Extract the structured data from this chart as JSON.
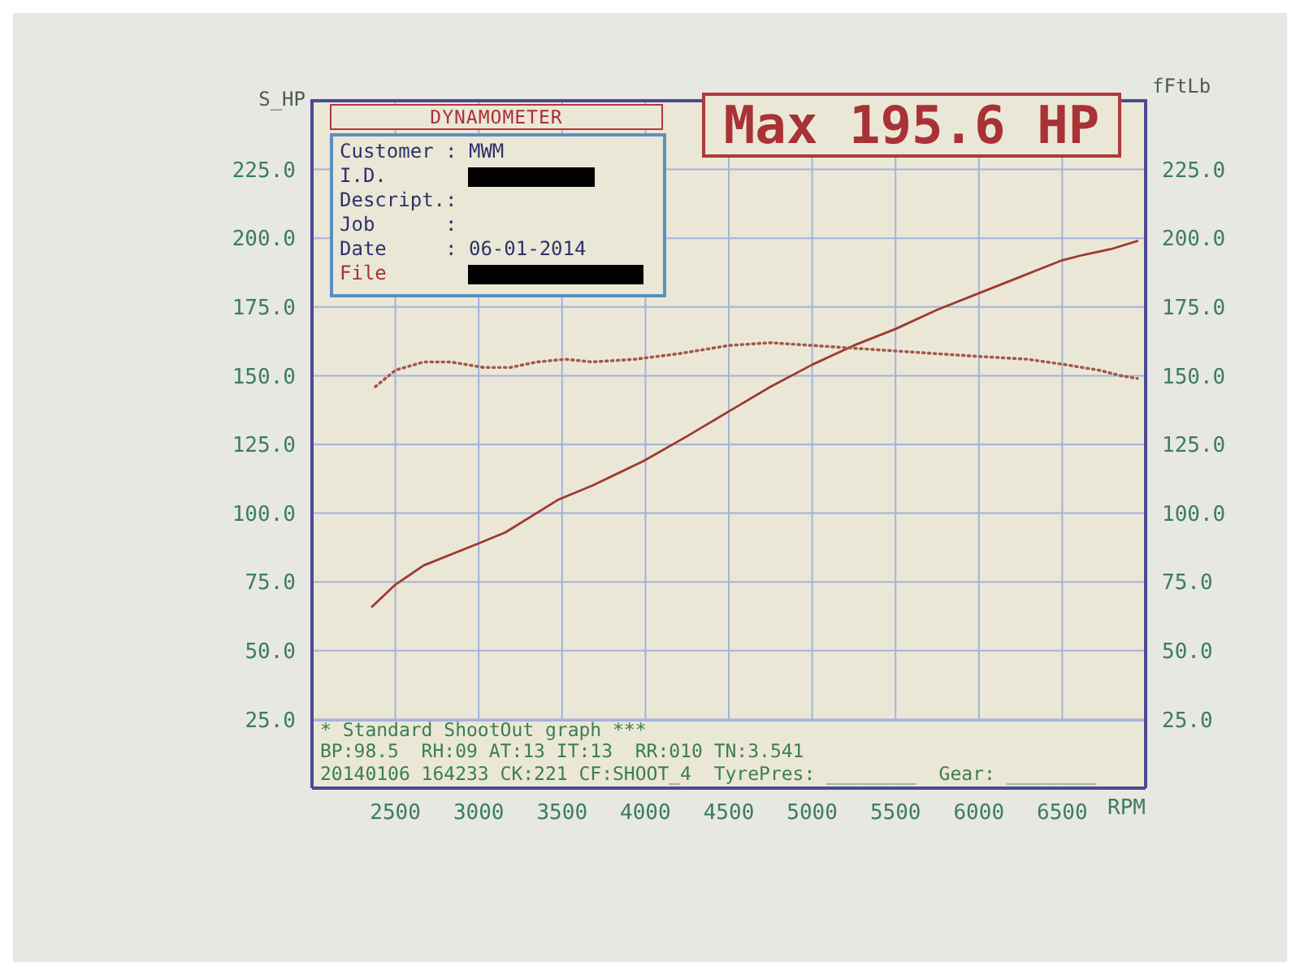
{
  "chart_data": {
    "type": "line",
    "title": "DYNAMOMETER",
    "xlabel": "RPM",
    "ylabel": "S_HP",
    "y2label": "fFtLb",
    "xlim": [
      2000,
      7000
    ],
    "xticks": [
      2500,
      3000,
      3500,
      4000,
      4500,
      5000,
      5500,
      6000,
      6500
    ],
    "ylim": [
      0,
      250
    ],
    "yticks": [
      {
        "value": 25,
        "label": "25.0"
      },
      {
        "value": 50,
        "label": "50.0"
      },
      {
        "value": 75,
        "label": "75.0"
      },
      {
        "value": 100,
        "label": "100.0"
      },
      {
        "value": 125,
        "label": "125.0"
      },
      {
        "value": 150,
        "label": "150.0"
      },
      {
        "value": 175,
        "label": "175.0"
      },
      {
        "value": 200,
        "label": "200.0"
      },
      {
        "value": 225,
        "label": "225.0"
      }
    ],
    "y2lim": [
      0,
      250
    ],
    "y2ticks": [
      {
        "value": 25,
        "label": "25.0"
      },
      {
        "value": 50,
        "label": "50.0"
      },
      {
        "value": 75,
        "label": "75.0"
      },
      {
        "value": 100,
        "label": "100.0"
      },
      {
        "value": 125,
        "label": "125.0"
      },
      {
        "value": 150,
        "label": "150.0"
      },
      {
        "value": 175,
        "label": "175.0"
      },
      {
        "value": 200,
        "label": "200.0"
      },
      {
        "value": 225,
        "label": "225.0"
      }
    ],
    "grid": true,
    "series": [
      {
        "color": "#9e3a2e",
        "x": [
          2360,
          2500,
          2670,
          3000,
          3160,
          3480,
          3680,
          3990,
          4250,
          4500,
          4750,
          5000,
          5250,
          5500,
          5750,
          6000,
          6250,
          6500,
          6630,
          6790,
          6950
        ],
        "values": [
          66,
          74,
          81,
          89,
          93,
          105,
          110,
          119,
          128,
          137,
          146,
          154,
          161,
          167,
          174,
          180,
          186,
          192,
          194,
          196,
          199
        ]
      },
      {
        "color": "#a4584a",
        "line_style": "dotted",
        "x": [
          2380,
          2500,
          2670,
          2830,
          3030,
          3190,
          3350,
          3520,
          3680,
          3940,
          4200,
          4500,
          4750,
          5000,
          5250,
          5500,
          5750,
          6000,
          6290,
          6520,
          6720,
          6850,
          6950
        ],
        "values": [
          146,
          152,
          155,
          155,
          153,
          153,
          155,
          156,
          155,
          156,
          158,
          161,
          162,
          161,
          160,
          159,
          158,
          157,
          156,
          154,
          152,
          150,
          149
        ]
      }
    ],
    "annotations": [
      "Customer : MWM",
      "I.D.",
      "Descript.:",
      "Job      :",
      "Date     : 06-01-2014",
      "File",
      "Max 195.6 HP",
      "* Standard ShootOut graph ***",
      "BP:98.5  RH:09 AT:13 IT:13  RR:010 TN:3.541",
      "20140106 164233 CK:221 CF:SHOOT_4  TyrePres: ________  Gear: ________"
    ]
  }
}
